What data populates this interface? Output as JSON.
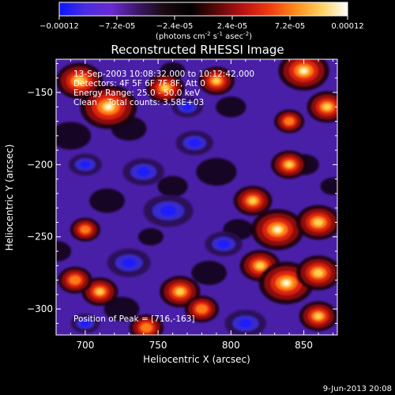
{
  "colorbar": {
    "tick_labels": [
      "-0.00012",
      "-7.2e-05",
      "-2.4e-05",
      "2.4e-05",
      "7.2e-05",
      "0.00012"
    ],
    "range": [
      -0.00012,
      0.00012
    ],
    "units_line": "(photons cm",
    "units_exp1": "-2",
    "units_mid": " s",
    "units_exp2": "-1",
    "units_tail": " asec",
    "units_exp3": "-2",
    "units_close": ")",
    "colormap_stops": [
      "#0b14ff",
      "#4a2de0",
      "#6a2ad0",
      "#3b1768",
      "#1a0a12",
      "#000000",
      "#5a0808",
      "#b81212",
      "#ee3a10",
      "#ff8a1a",
      "#ffd060",
      "#ffffff"
    ]
  },
  "chart_data": {
    "type": "heatmap",
    "title": "Reconstructed RHESSI Image",
    "xlabel": "Heliocentric X (arcsec)",
    "ylabel": "Heliocentric Y (arcsec)",
    "xlim": [
      680,
      873
    ],
    "ylim": [
      -318,
      -127
    ],
    "xticks": [
      700,
      750,
      800,
      850
    ],
    "yticks": [
      -150,
      -200,
      -250,
      -300
    ],
    "xtick_labels": [
      "700",
      "750",
      "800",
      "850"
    ],
    "ytick_labels": [
      "-150",
      "-200",
      "-250",
      "-300"
    ],
    "annotations": [
      "13-Sep-2003 10:08:32.000 to 10:12:42.000",
      "Detectors: 4F 5F 6F 7F 8F, Att 0",
      "Energy Range: 25.0 - 50.0 keV",
      "Clean    Total counts: 3.58E+03"
    ],
    "peak_label": "Position of Peak = [716,-163]",
    "peak": [
      716,
      -163
    ],
    "hot_spots": [
      {
        "x": 716,
        "y": -160,
        "amp": 1.0
      },
      {
        "x": 696,
        "y": -142,
        "amp": 0.75
      },
      {
        "x": 755,
        "y": -147,
        "amp": 0.55
      },
      {
        "x": 790,
        "y": -142,
        "amp": 0.5
      },
      {
        "x": 850,
        "y": -135,
        "amp": 0.85
      },
      {
        "x": 866,
        "y": -160,
        "amp": 0.6
      },
      {
        "x": 840,
        "y": -200,
        "amp": 0.5
      },
      {
        "x": 815,
        "y": -225,
        "amp": 0.55
      },
      {
        "x": 832,
        "y": -245,
        "amp": 0.9
      },
      {
        "x": 860,
        "y": -240,
        "amp": 0.7
      },
      {
        "x": 820,
        "y": -270,
        "amp": 0.6
      },
      {
        "x": 838,
        "y": -282,
        "amp": 0.95
      },
      {
        "x": 860,
        "y": -275,
        "amp": 0.7
      },
      {
        "x": 765,
        "y": -288,
        "amp": 0.6
      },
      {
        "x": 780,
        "y": -300,
        "amp": 0.45
      },
      {
        "x": 710,
        "y": -288,
        "amp": 0.5
      },
      {
        "x": 693,
        "y": -280,
        "amp": 0.45
      },
      {
        "x": 742,
        "y": -313,
        "amp": 0.45
      },
      {
        "x": 700,
        "y": -245,
        "amp": 0.35
      },
      {
        "x": 860,
        "y": -305,
        "amp": 0.55
      },
      {
        "x": 840,
        "y": -170,
        "amp": 0.35
      }
    ],
    "cold_spots": [
      {
        "x": 757,
        "y": -232,
        "amp": 0.9
      },
      {
        "x": 740,
        "y": -205,
        "amp": 0.7
      },
      {
        "x": 775,
        "y": -185,
        "amp": 0.6
      },
      {
        "x": 730,
        "y": -268,
        "amp": 0.75
      },
      {
        "x": 700,
        "y": -200,
        "amp": 0.5
      },
      {
        "x": 795,
        "y": -255,
        "amp": 0.6
      },
      {
        "x": 810,
        "y": -310,
        "amp": 0.7
      },
      {
        "x": 770,
        "y": -160,
        "amp": 0.45
      },
      {
        "x": 700,
        "y": -310,
        "amp": 0.4
      }
    ]
  },
  "footer": {
    "timestamp": "9-Jun-2013 20:08"
  }
}
